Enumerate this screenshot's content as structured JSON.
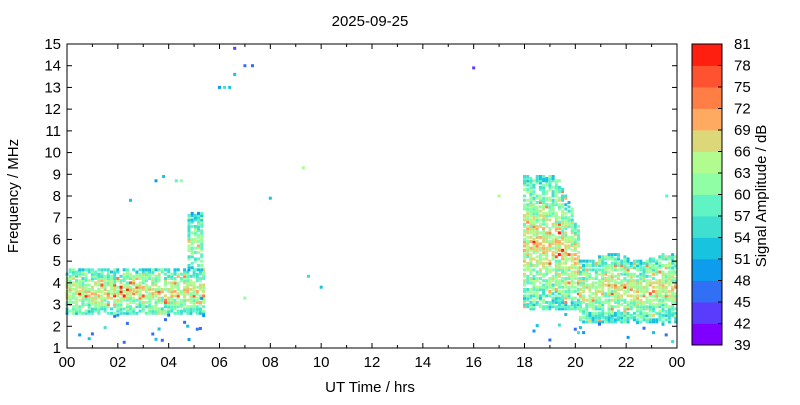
{
  "chart_data": {
    "type": "heatmap",
    "title": "2025-09-25",
    "xlabel": "UT Time / hrs",
    "ylabel": "Frequency / MHz",
    "xlim": [
      0,
      24
    ],
    "ylim": [
      1,
      15
    ],
    "x_ticks": [
      "00",
      "02",
      "04",
      "06",
      "08",
      "10",
      "12",
      "14",
      "16",
      "18",
      "20",
      "22",
      "00"
    ],
    "y_ticks": [
      1,
      2,
      3,
      4,
      5,
      6,
      7,
      8,
      9,
      10,
      11,
      12,
      13,
      14,
      15
    ],
    "grid": false,
    "colorbar": {
      "label": "Signal Amplitude / dB",
      "ticks": [
        39,
        42,
        45,
        48,
        51,
        54,
        57,
        60,
        63,
        66,
        69,
        72,
        75,
        78,
        81
      ],
      "colors": [
        "#7f00ff",
        "#5a3cfc",
        "#3170f5",
        "#0e9cec",
        "#17c3de",
        "#40e0d0",
        "#60f3c4",
        "#8ffea5",
        "#b2fb8f",
        "#dcd778",
        "#ffaa60",
        "#ff7e45",
        "#ff5230",
        "#ff1f10"
      ]
    },
    "clusters": [
      {
        "t_start": 0.0,
        "t_end": 5.4,
        "f_low": 2.6,
        "f_high": 4.6,
        "amplitude_mean_db": 63
      },
      {
        "t_start": 4.8,
        "t_end": 5.4,
        "f_low": 4.6,
        "f_high": 7.2,
        "amplitude_mean_db": 60
      },
      {
        "t_start": 18.0,
        "t_end": 20.2,
        "f_low": 2.8,
        "f_high": 8.9,
        "amplitude_mean_db": 63
      },
      {
        "t_start": 20.2,
        "t_end": 24.0,
        "f_low": 2.2,
        "f_high": 5.2,
        "amplitude_mean_db": 62
      }
    ],
    "isolated_points": [
      {
        "t": 2.5,
        "f": 7.8,
        "db": 51
      },
      {
        "t": 3.5,
        "f": 8.7,
        "db": 48
      },
      {
        "t": 3.8,
        "f": 8.9,
        "db": 51
      },
      {
        "t": 4.3,
        "f": 8.7,
        "db": 57
      },
      {
        "t": 4.5,
        "f": 8.7,
        "db": 60
      },
      {
        "t": 6.0,
        "f": 13.0,
        "db": 48
      },
      {
        "t": 6.2,
        "f": 13.0,
        "db": 54
      },
      {
        "t": 6.4,
        "f": 13.0,
        "db": 51
      },
      {
        "t": 6.6,
        "f": 13.6,
        "db": 51
      },
      {
        "t": 6.6,
        "f": 14.8,
        "db": 42
      },
      {
        "t": 7.0,
        "f": 14.0,
        "db": 45
      },
      {
        "t": 7.3,
        "f": 14.0,
        "db": 45
      },
      {
        "t": 7.0,
        "f": 3.3,
        "db": 60
      },
      {
        "t": 8.0,
        "f": 7.9,
        "db": 51
      },
      {
        "t": 9.3,
        "f": 9.3,
        "db": 63
      },
      {
        "t": 9.5,
        "f": 4.3,
        "db": 54
      },
      {
        "t": 10.0,
        "f": 3.8,
        "db": 51
      },
      {
        "t": 16.0,
        "f": 13.9,
        "db": 42
      },
      {
        "t": 17.0,
        "f": 8.0,
        "db": 63
      },
      {
        "t": 23.6,
        "f": 8.0,
        "db": 57
      }
    ]
  }
}
